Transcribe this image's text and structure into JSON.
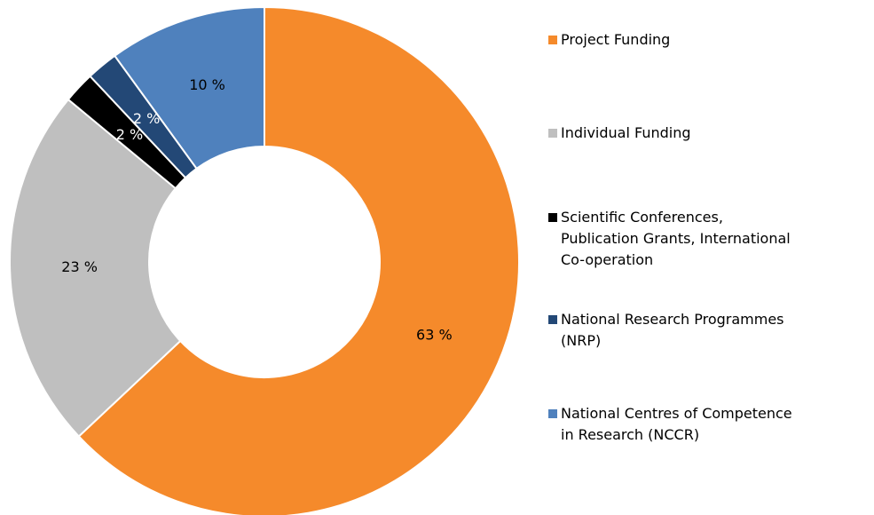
{
  "chart_data": {
    "type": "donut",
    "categories": [
      "Project Funding",
      "Individual Funding",
      "Scientific Conferences,\nPublication Grants, International\nCo-operation",
      "National Research Programmes\n(NRP)",
      "National Centres of Competence\nin Research (NCCR)"
    ],
    "values": [
      63,
      23,
      2,
      2,
      10
    ],
    "value_labels": [
      "63 %",
      "23 %",
      "2 %",
      "2 %",
      "10 %"
    ],
    "colors": [
      "#f58a2b",
      "#bfbfbf",
      "#000000",
      "#234876",
      "#4f81bd"
    ],
    "legend": "right"
  }
}
